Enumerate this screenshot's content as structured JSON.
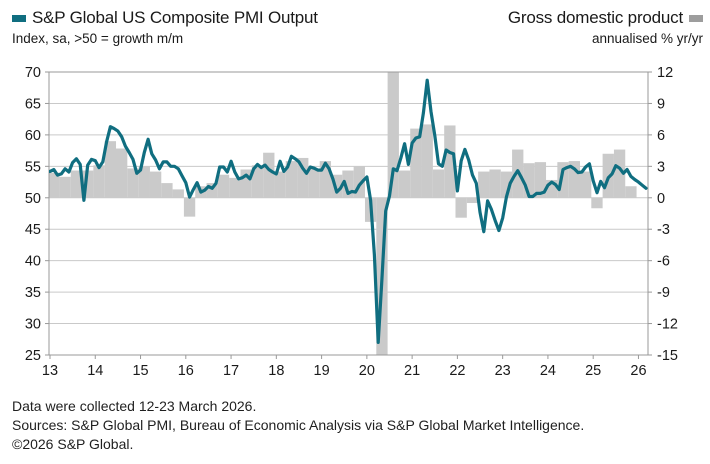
{
  "header": {
    "left": {
      "title": "S&P Global US Composite PMI Output",
      "subtitle": "Index, sa, >50 = growth m/m",
      "swatch_color": "#106e80"
    },
    "right": {
      "title": "Gross domestic product",
      "subtitle": "annualised % yr/yr",
      "swatch_color": "#9d9d9d"
    }
  },
  "footer": {
    "line1": "Data were collected 12-23 March 2026.",
    "line2": "Sources: S&P Global PMI, Bureau of Economic Analysis via S&P Global Market Intelligence.",
    "line3": "©2026 S&P Global."
  },
  "chart_data": {
    "type": "line+bar",
    "title": "S&P Global US Composite PMI Output vs Gross domestic product",
    "colors": {
      "line": "#106e80",
      "bars": "#cacaca",
      "grid": "#c9c9c9",
      "border": "#999999",
      "text": "#1a1a1a"
    },
    "left_axis": {
      "label": "Index, sa, >50 = growth m/m",
      "range": [
        25,
        70
      ],
      "ticks": [
        70,
        65,
        60,
        55,
        50,
        45,
        40,
        35,
        30,
        25
      ]
    },
    "right_axis": {
      "label": "annualised % yr/yr",
      "range": [
        -15,
        12
      ],
      "ticks": [
        12,
        9,
        6,
        3,
        0,
        -3,
        -6,
        -9,
        -12,
        -15
      ]
    },
    "x_axis": {
      "labels": [
        "13",
        "14",
        "15",
        "16",
        "17",
        "18",
        "19",
        "20",
        "21",
        "22",
        "23",
        "24",
        "25",
        "26"
      ],
      "grid": false
    },
    "series": [
      {
        "name": "S&P Global US Composite PMI Output",
        "type": "line",
        "axis": "left",
        "freq": "monthly",
        "start": "2013-01",
        "end": "2026-03",
        "color": "#106e80",
        "values": [
          54.2,
          54.5,
          53.6,
          53.8,
          54.6,
          54.1,
          55.6,
          56.2,
          55.3,
          49.6,
          55.2,
          56.1,
          55.9,
          54.8,
          55.7,
          58.9,
          61.3,
          61.0,
          60.6,
          59.7,
          58.2,
          57.2,
          56.1,
          53.9,
          54.4,
          57.2,
          59.3,
          57.0,
          56.0,
          54.6,
          55.7,
          55.7,
          55.0,
          55.0,
          54.6,
          53.5,
          52.4,
          50.1,
          51.3,
          52.4,
          50.9,
          51.2,
          51.8,
          51.5,
          52.3,
          54.9,
          54.9,
          54.1,
          55.8,
          54.1,
          53.0,
          53.2,
          53.6,
          53.0,
          54.6,
          55.3,
          54.8,
          55.2,
          54.5,
          54.1,
          53.8,
          55.8,
          54.2,
          54.9,
          56.6,
          56.2,
          55.7,
          54.7,
          53.9,
          54.9,
          54.7,
          54.4,
          54.4,
          55.5,
          54.6,
          53.0,
          50.9,
          51.5,
          52.6,
          50.7,
          51.0,
          50.9,
          52.0,
          52.7,
          53.3,
          49.6,
          40.9,
          27.0,
          37.0,
          47.9,
          50.3,
          54.6,
          54.3,
          56.3,
          58.6,
          55.3,
          58.7,
          59.5,
          59.7,
          63.5,
          68.7,
          63.7,
          59.9,
          55.4,
          55.0,
          57.6,
          57.2,
          57.0,
          51.1,
          55.9,
          57.7,
          56.0,
          53.6,
          52.3,
          47.7,
          44.6,
          49.5,
          48.2,
          46.4,
          44.8,
          46.8,
          50.1,
          52.3,
          53.4,
          54.3,
          53.2,
          52.0,
          50.2,
          50.2,
          50.7,
          50.7,
          50.9,
          52.0,
          52.5,
          52.1,
          51.3,
          54.5,
          54.8,
          55.0,
          54.6,
          54.0,
          54.1,
          54.9,
          55.4,
          52.7,
          50.8,
          52.6,
          51.6,
          53.2,
          53.8,
          55.1,
          54.7,
          53.9,
          54.5,
          53.4,
          52.9,
          52.5,
          52.0,
          51.5
        ]
      },
      {
        "name": "Gross domestic product",
        "type": "bar",
        "axis": "right",
        "freq": "quarterly",
        "start": "2013-Q1",
        "end": "2025-Q4",
        "color": "#cacaca",
        "clipped_to_axis": true,
        "values": [
          2.4,
          2.0,
          2.6,
          2.6,
          3.1,
          5.4,
          4.7,
          2.8,
          3.0,
          2.5,
          1.4,
          0.8,
          -1.8,
          1.1,
          1.4,
          2.2,
          1.9,
          2.7,
          3.1,
          4.3,
          2.5,
          3.5,
          3.8,
          2.8,
          3.5,
          2.2,
          2.6,
          3.0,
          -2.3,
          -15.0,
          12.0,
          2.6,
          6.6,
          7.0,
          2.7,
          6.9,
          -1.9,
          -0.5,
          2.5,
          2.7,
          2.5,
          4.6,
          3.3,
          3.4,
          1.7,
          3.4,
          3.5,
          2.5,
          -1.0,
          4.2,
          4.6,
          1.1
        ]
      }
    ]
  }
}
